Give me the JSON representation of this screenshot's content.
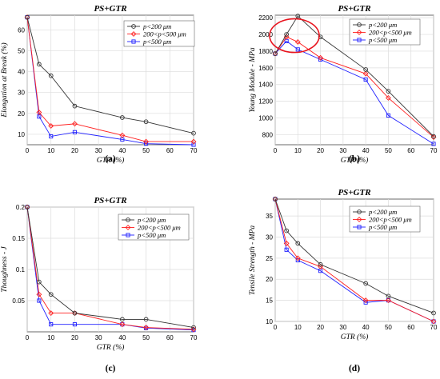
{
  "figure": {
    "legend_entries": [
      {
        "label": "p<200 μm",
        "color": "#333333",
        "marker": "circle"
      },
      {
        "label": "200<p<500 μm",
        "color": "#ff2020",
        "marker": "diamond"
      },
      {
        "label": "p<500 μm",
        "color": "#2020ff",
        "marker": "square"
      }
    ],
    "highlight_color": "#e8141e"
  },
  "chart_data": [
    {
      "type": "line",
      "title": "PS+GTR",
      "caption": "(a)",
      "xlabel": "GTR (%)",
      "ylabel": "Elongation at Break (%)",
      "xlim": [
        0,
        70
      ],
      "ylim": [
        5,
        67
      ],
      "xticks": [
        0,
        10,
        20,
        30,
        40,
        50,
        60,
        70
      ],
      "yticks": [
        10,
        20,
        30,
        40,
        50,
        60
      ],
      "x": [
        0,
        5,
        10,
        20,
        40,
        50,
        70
      ],
      "grid": true,
      "legend": "top-right",
      "series": [
        {
          "name": "p<200 μm",
          "values": [
            66,
            43.5,
            38,
            23.5,
            18,
            16,
            10.5
          ]
        },
        {
          "name": "200<p<500 μm",
          "values": [
            66,
            20.5,
            14,
            15,
            9.5,
            6.5,
            6.5
          ]
        },
        {
          "name": "p<500 μm",
          "values": [
            66,
            18.5,
            9,
            11,
            7.5,
            5.5,
            5
          ]
        }
      ]
    },
    {
      "type": "line",
      "title": "PS+GTR",
      "caption": "(b)",
      "xlabel": "GTR (%)",
      "ylabel": "Young Module - MPa",
      "xlim": [
        0,
        70
      ],
      "ylim": [
        680,
        2230
      ],
      "xticks": [
        0,
        10,
        20,
        30,
        40,
        50,
        60,
        70
      ],
      "yticks": [
        800,
        1000,
        1200,
        1400,
        1600,
        1800,
        2000,
        2200
      ],
      "x": [
        0,
        5,
        10,
        20,
        40,
        50,
        70
      ],
      "grid": true,
      "legend": "top-right",
      "highlight": "ellipse around the peak region",
      "series": [
        {
          "name": "p<200 μm",
          "values": [
            1770,
            2000,
            2220,
            1970,
            1580,
            1320,
            780
          ]
        },
        {
          "name": "200<p<500 μm",
          "values": [
            1770,
            1970,
            1910,
            1720,
            1530,
            1240,
            770
          ]
        },
        {
          "name": "p<500 μm",
          "values": [
            1770,
            1920,
            1820,
            1700,
            1460,
            1030,
            690
          ]
        }
      ]
    },
    {
      "type": "line",
      "title": "PS+GTR",
      "caption": "(c)",
      "xlabel": "GTR (%)",
      "ylabel": "Thoughness - J",
      "xlim": [
        0,
        70
      ],
      "ylim": [
        0,
        0.2
      ],
      "xticks": [
        0,
        10,
        20,
        30,
        40,
        50,
        60,
        70
      ],
      "yticks": [
        0.05,
        0.1,
        0.15,
        0.2
      ],
      "x": [
        0,
        5,
        10,
        20,
        40,
        50,
        70
      ],
      "grid": true,
      "legend": "top-right",
      "series": [
        {
          "name": "p<200 μm",
          "values": [
            0.2,
            0.08,
            0.06,
            0.03,
            0.02,
            0.02,
            0.007
          ]
        },
        {
          "name": "200<p<500 μm",
          "values": [
            0.2,
            0.06,
            0.03,
            0.03,
            0.012,
            0.007,
            0.004
          ]
        },
        {
          "name": "p<500 μm",
          "values": [
            0.2,
            0.05,
            0.012,
            0.012,
            0.012,
            0.006,
            0.003
          ]
        }
      ]
    },
    {
      "type": "line",
      "title": "PS+GTR",
      "caption": "(d)",
      "xlabel": "GTR (%)",
      "ylabel": "Tensile Strength - MPa",
      "xlim": [
        0,
        70
      ],
      "ylim": [
        10,
        39
      ],
      "xticks": [
        0,
        10,
        20,
        30,
        40,
        50,
        60,
        70
      ],
      "yticks": [
        10,
        15,
        20,
        25,
        30,
        35
      ],
      "x": [
        0,
        5,
        10,
        20,
        40,
        50,
        70
      ],
      "grid": true,
      "legend": "top-right",
      "series": [
        {
          "name": "p<200 μm",
          "values": [
            39,
            31.5,
            28.5,
            23.5,
            19,
            16,
            12
          ]
        },
        {
          "name": "200<p<500 μm",
          "values": [
            39,
            28.5,
            25,
            23,
            15,
            15,
            10
          ]
        },
        {
          "name": "p<500 μm",
          "values": [
            39,
            27,
            24.5,
            22,
            14.5,
            15,
            10
          ]
        }
      ]
    }
  ]
}
